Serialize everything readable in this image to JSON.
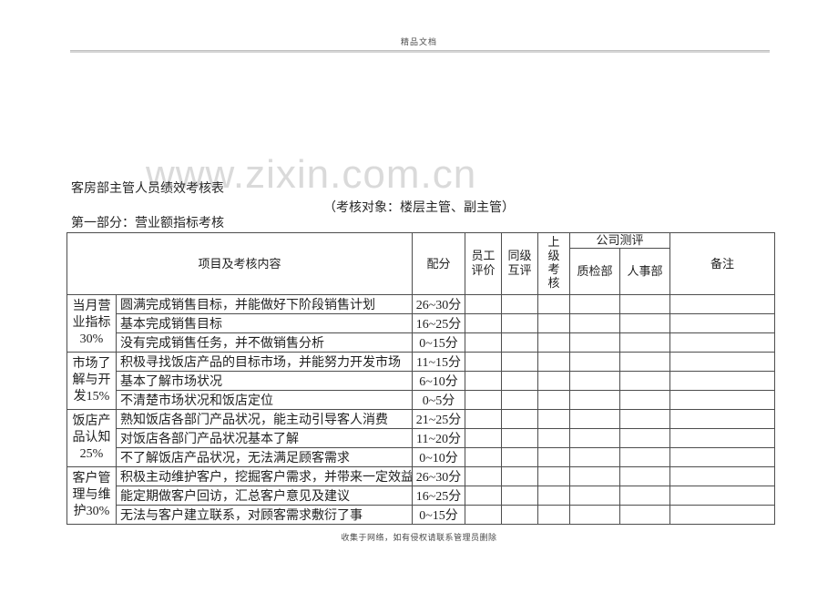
{
  "page": {
    "header_note": "精品文档",
    "watermark": "www.zixin.com.cn",
    "footer_note": "收集于网络，如有侵权请联系管理员删除"
  },
  "doc": {
    "title": "客房部主管人员绩效考核表",
    "subtitle": "（考核对象：楼层主管、副主管）",
    "section": "第一部分：营业额指标考核"
  },
  "table": {
    "headers": {
      "item": "项目及考核内容",
      "score": "配分",
      "self_eval": "员工评价",
      "peer_eval": "同级互评",
      "superior_eval": "上级考核",
      "company_eval": "公司测评",
      "quality_dept": "质检部",
      "hr_dept": "人事部",
      "remark": "备注"
    },
    "empty_cell_names": [
      "self-eval",
      "peer-eval",
      "superior-eval",
      "quality-dept",
      "hr-dept",
      "remark"
    ],
    "groups": [
      {
        "category": "当月营业指标30%",
        "rows": [
          {
            "content": "圆满完成销售目标，并能做好下阶段销售计划",
            "score": "26~30分"
          },
          {
            "content": "基本完成销售目标",
            "score": "16~25分"
          },
          {
            "content": "没有完成销售任务，并不做销售分析",
            "score": "0~15分"
          }
        ]
      },
      {
        "category": "市场了解与开发15%",
        "rows": [
          {
            "content": "积极寻找饭店产品的目标市场，并能努力开发市场",
            "score": "11~15分"
          },
          {
            "content": "基本了解市场状况",
            "score": "6~10分"
          },
          {
            "content": "不清楚市场状况和饭店定位",
            "score": "0~5分"
          }
        ]
      },
      {
        "category": "饭店产品认知25%",
        "rows": [
          {
            "content": "熟知饭店各部门产品状况，能主动引导客人消费",
            "score": "21~25分"
          },
          {
            "content": "对饭店各部门产品状况基本了解",
            "score": "11~20分"
          },
          {
            "content": "不了解饭店产品状况，无法满足顾客需求",
            "score": "0~10分"
          }
        ]
      },
      {
        "category": "客户管理与维护30%",
        "rows": [
          {
            "content": "积极主动维护客户，挖掘客户需求，并带来一定效益",
            "score": "26~30分"
          },
          {
            "content": "能定期做客户回访，汇总客户意见及建议",
            "score": "16~25分"
          },
          {
            "content": "无法与客户建立联系，对顾客需求敷衍了事",
            "score": "0~15分"
          }
        ]
      }
    ]
  }
}
